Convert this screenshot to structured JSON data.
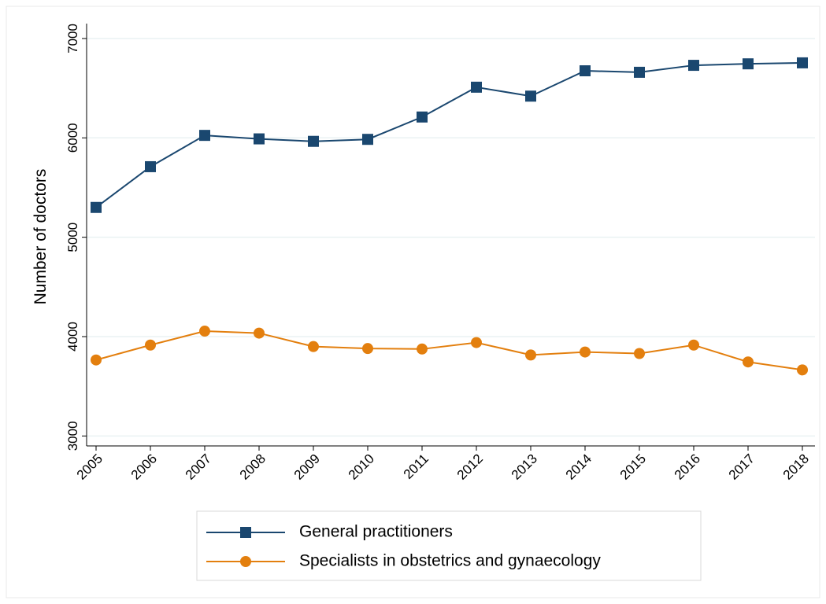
{
  "chart_data": {
    "type": "line",
    "y_label": "Number of doctors",
    "categories": [
      "2005",
      "2006",
      "2007",
      "2008",
      "2009",
      "2010",
      "2011",
      "2012",
      "2013",
      "2014",
      "2015",
      "2016",
      "2017",
      "2018"
    ],
    "series": [
      {
        "name": "General practitioners",
        "color": "#1a476f",
        "marker": "square",
        "values": [
          5300,
          5710,
          6025,
          5990,
          5965,
          5985,
          6210,
          6510,
          6420,
          6675,
          6660,
          6730,
          6745,
          6755
        ]
      },
      {
        "name": "Specialists in obstetrics and gynaecology",
        "color": "#e37f0e",
        "marker": "circle",
        "values": [
          3765,
          3915,
          4055,
          4035,
          3900,
          3880,
          3875,
          3940,
          3815,
          3845,
          3830,
          3915,
          3745,
          3665
        ]
      }
    ],
    "ylim": [
      2900,
      7150
    ],
    "yticks": [
      3000,
      4000,
      5000,
      6000,
      7000
    ],
    "grid": true
  }
}
